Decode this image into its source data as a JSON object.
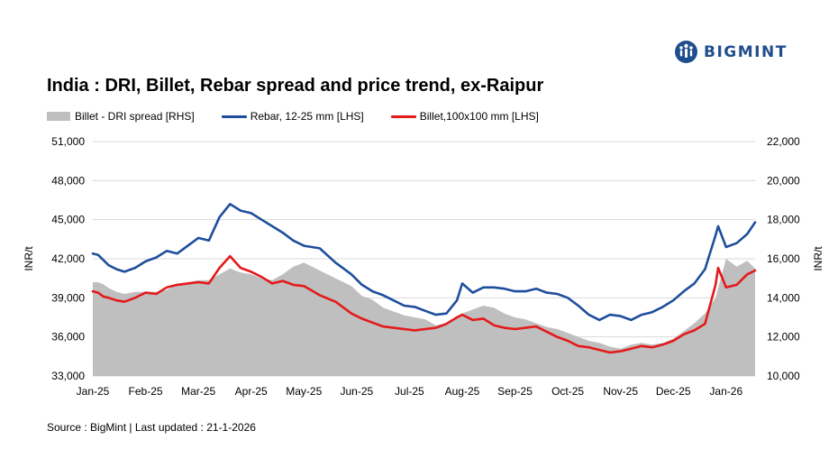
{
  "brand": {
    "name": "BIGMINT",
    "color": "#1f4e8c"
  },
  "title": "India : DRI, Billet, Rebar spread and price trend, ex-Raipur",
  "source": "Source : BigMint | Last updated : 21-1-2026",
  "chart_data": {
    "type": "line",
    "title": "India : DRI, Billet, Rebar spread and price trend, ex-Raipur",
    "ylabel": "INR/t",
    "y2label": "INR/t",
    "ylim": [
      33000,
      51000
    ],
    "y2lim": [
      10000,
      22000
    ],
    "yticks": [
      "33,000",
      "36,000",
      "39,000",
      "42,000",
      "45,000",
      "48,000",
      "51,000"
    ],
    "y2ticks": [
      "10,000",
      "12,000",
      "14,000",
      "16,000",
      "18,000",
      "20,000",
      "22,000"
    ],
    "categories": [
      "Jan-25",
      "Feb-25",
      "Mar-25",
      "Apr-25",
      "May-25",
      "Jun-25",
      "Jul-25",
      "Aug-25",
      "Sep-25",
      "Oct-25",
      "Nov-25",
      "Dec-25",
      "Jan-26"
    ],
    "grid": "horizontal",
    "legend_position": "top-left",
    "x": [
      0,
      0.1,
      0.2,
      0.3,
      0.45,
      0.6,
      0.8,
      1.0,
      1.2,
      1.4,
      1.6,
      1.8,
      2.0,
      2.2,
      2.4,
      2.6,
      2.8,
      3.0,
      3.2,
      3.4,
      3.6,
      3.8,
      4.0,
      4.3,
      4.6,
      4.9,
      5.1,
      5.3,
      5.5,
      5.7,
      5.9,
      6.1,
      6.3,
      6.5,
      6.7,
      6.9,
      7.0,
      7.2,
      7.4,
      7.6,
      7.8,
      8.0,
      8.2,
      8.4,
      8.6,
      8.8,
      9.0,
      9.2,
      9.4,
      9.6,
      9.8,
      10.0,
      10.2,
      10.4,
      10.6,
      10.8,
      11.0,
      11.2,
      11.4,
      11.6,
      11.8,
      11.85,
      12.0,
      12.2,
      12.4,
      12.55
    ],
    "series": [
      {
        "name": "Billet - DRI spread  [RHS]",
        "kind": "area",
        "axis": "right",
        "color": "#bfbfbf",
        "values": [
          14800,
          14800,
          14700,
          14500,
          14300,
          14200,
          14300,
          14300,
          14300,
          14400,
          14700,
          14800,
          14900,
          14900,
          15200,
          15500,
          15300,
          15200,
          15000,
          14900,
          15200,
          15600,
          15800,
          15400,
          15000,
          14600,
          14100,
          13900,
          13500,
          13300,
          13100,
          13000,
          12900,
          12600,
          12700,
          13000,
          13200,
          13400,
          13600,
          13500,
          13200,
          13000,
          12900,
          12700,
          12500,
          12400,
          12200,
          12000,
          11800,
          11700,
          11500,
          11400,
          11600,
          11700,
          11600,
          11700,
          11900,
          12300,
          12700,
          13200,
          14000,
          14500,
          16000,
          15600,
          15900,
          15500
        ]
      },
      {
        "name": "Rebar, 12-25 mm [LHS]",
        "kind": "line",
        "axis": "left",
        "color": "#1f4e9c",
        "values": [
          42400,
          42300,
          41900,
          41500,
          41200,
          41000,
          41300,
          41800,
          42100,
          42600,
          42400,
          43000,
          43600,
          43400,
          45200,
          46200,
          45700,
          45500,
          45000,
          44500,
          44000,
          43400,
          43000,
          42800,
          41700,
          40800,
          40000,
          39500,
          39200,
          38800,
          38400,
          38300,
          38000,
          37700,
          37800,
          38800,
          40100,
          39400,
          39800,
          39800,
          39700,
          39500,
          39500,
          39700,
          39400,
          39300,
          39000,
          38400,
          37700,
          37300,
          37700,
          37600,
          37300,
          37700,
          37900,
          38300,
          38800,
          39500,
          40100,
          41200,
          43800,
          44500,
          42900,
          43200,
          43900,
          44800
        ]
      },
      {
        "name": "Billet,100x100 mm [LHS]",
        "kind": "line",
        "axis": "left",
        "color": "#e41a1c",
        "values": [
          39500,
          39400,
          39100,
          39000,
          38800,
          38700,
          39000,
          39400,
          39300,
          39800,
          40000,
          40100,
          40200,
          40100,
          41300,
          42200,
          41300,
          41000,
          40600,
          40100,
          40300,
          40000,
          39900,
          39200,
          38700,
          37800,
          37400,
          37100,
          36800,
          36700,
          36600,
          36500,
          36600,
          36700,
          37000,
          37500,
          37700,
          37300,
          37400,
          36900,
          36700,
          36600,
          36700,
          36800,
          36400,
          36000,
          35700,
          35300,
          35200,
          35000,
          34800,
          34900,
          35100,
          35300,
          35200,
          35400,
          35700,
          36200,
          36500,
          37000,
          40000,
          41300,
          39800,
          40000,
          40800,
          41100
        ]
      }
    ]
  }
}
